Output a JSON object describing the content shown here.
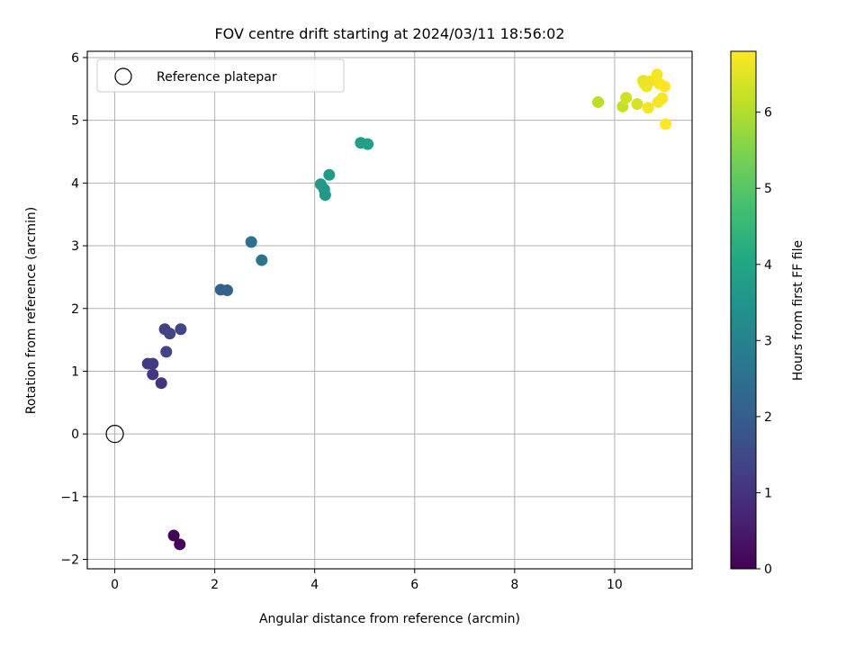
{
  "chart_data": {
    "type": "scatter",
    "title": "FOV centre drift starting at 2024/03/11 18:56:02",
    "xlabel": "Angular distance from reference (arcmin)",
    "ylabel": "Rotation from reference (arcmin)",
    "xlim": [
      -0.55,
      11.55
    ],
    "ylim": [
      -2.15,
      6.1
    ],
    "x_ticks": [
      0,
      2,
      4,
      6,
      8,
      10
    ],
    "y_ticks": [
      -2,
      -1,
      0,
      1,
      2,
      3,
      4,
      5,
      6
    ],
    "x_tick_labels": [
      "0",
      "2",
      "4",
      "6",
      "8",
      "10"
    ],
    "y_tick_labels": [
      "−2",
      "−1",
      "0",
      "1",
      "2",
      "3",
      "4",
      "5",
      "6"
    ],
    "grid": true,
    "legend": {
      "placement": "top-left",
      "entries": [
        "Reference platepar"
      ]
    },
    "reference_point": {
      "x": 0,
      "y": 0,
      "label": "Reference platepar"
    },
    "colorbar": {
      "label": "Hours from first FF file",
      "range": [
        0,
        6.8
      ],
      "ticks": [
        0,
        1,
        2,
        3,
        4,
        5,
        6
      ],
      "tick_labels": [
        "0",
        "1",
        "2",
        "3",
        "4",
        "5",
        "6"
      ],
      "colormap": "viridis"
    },
    "points": [
      {
        "x": 1.18,
        "y": -1.62,
        "hours": 0.05
      },
      {
        "x": 1.3,
        "y": -1.76,
        "hours": 0.1
      },
      {
        "x": 0.93,
        "y": 0.81,
        "hours": 1.0
      },
      {
        "x": 0.76,
        "y": 0.95,
        "hours": 1.1
      },
      {
        "x": 0.66,
        "y": 1.12,
        "hours": 1.15
      },
      {
        "x": 0.76,
        "y": 1.12,
        "hours": 1.2
      },
      {
        "x": 1.03,
        "y": 1.31,
        "hours": 1.35
      },
      {
        "x": 1.0,
        "y": 1.67,
        "hours": 1.3
      },
      {
        "x": 1.1,
        "y": 1.6,
        "hours": 1.35
      },
      {
        "x": 1.32,
        "y": 1.67,
        "hours": 1.4
      },
      {
        "x": 2.12,
        "y": 2.3,
        "hours": 2.1
      },
      {
        "x": 2.25,
        "y": 2.29,
        "hours": 2.15
      },
      {
        "x": 2.73,
        "y": 3.06,
        "hours": 2.5
      },
      {
        "x": 2.94,
        "y": 2.77,
        "hours": 2.6
      },
      {
        "x": 4.12,
        "y": 3.98,
        "hours": 3.6
      },
      {
        "x": 4.19,
        "y": 3.9,
        "hours": 3.6
      },
      {
        "x": 4.21,
        "y": 3.81,
        "hours": 3.65
      },
      {
        "x": 4.29,
        "y": 4.13,
        "hours": 3.7
      },
      {
        "x": 4.92,
        "y": 4.64,
        "hours": 3.8
      },
      {
        "x": 5.06,
        "y": 4.62,
        "hours": 3.85
      },
      {
        "x": 9.67,
        "y": 5.29,
        "hours": 6.1
      },
      {
        "x": 10.16,
        "y": 5.22,
        "hours": 6.2
      },
      {
        "x": 10.23,
        "y": 5.36,
        "hours": 6.3
      },
      {
        "x": 10.45,
        "y": 5.26,
        "hours": 6.4
      },
      {
        "x": 10.57,
        "y": 5.63,
        "hours": 6.55
      },
      {
        "x": 10.6,
        "y": 5.58,
        "hours": 6.6
      },
      {
        "x": 10.64,
        "y": 5.54,
        "hours": 6.65
      },
      {
        "x": 10.7,
        "y": 5.62,
        "hours": 6.65
      },
      {
        "x": 10.67,
        "y": 5.2,
        "hours": 6.7
      },
      {
        "x": 10.85,
        "y": 5.73,
        "hours": 6.7
      },
      {
        "x": 10.87,
        "y": 5.29,
        "hours": 6.7
      },
      {
        "x": 10.9,
        "y": 5.58,
        "hours": 6.75
      },
      {
        "x": 10.95,
        "y": 5.35,
        "hours": 6.75
      },
      {
        "x": 11.0,
        "y": 5.54,
        "hours": 6.8
      },
      {
        "x": 11.02,
        "y": 4.94,
        "hours": 6.8
      }
    ]
  }
}
